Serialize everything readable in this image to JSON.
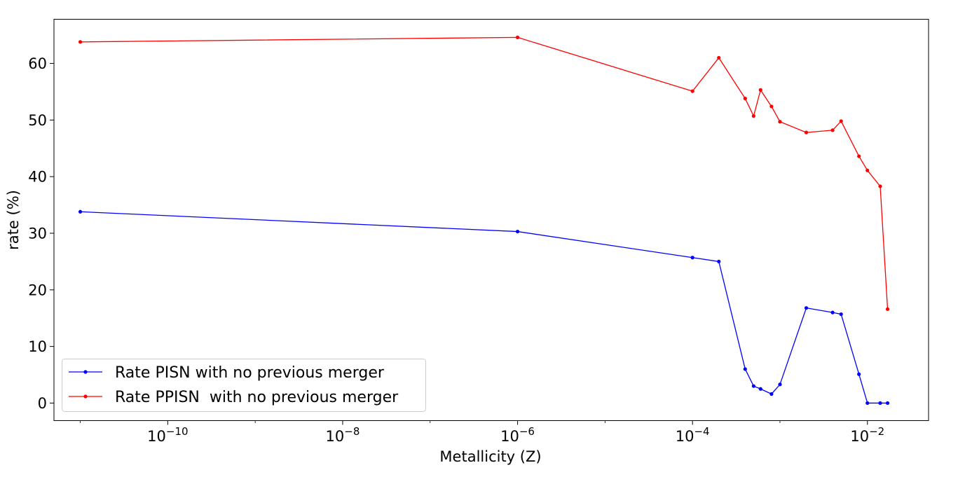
{
  "chart_data": {
    "type": "line",
    "title": "",
    "xlabel": "Metallicity (Z)",
    "ylabel": "rate (%)",
    "xscale": "log",
    "xlim": [
      5e-12,
      0.05
    ],
    "ylim": [
      -3.1,
      67.8
    ],
    "grid": false,
    "legend_position": "lower-left",
    "xticks": [
      {
        "value": 1e-10,
        "base": "10",
        "exp": "−10"
      },
      {
        "value": 1e-08,
        "base": "10",
        "exp": "−8"
      },
      {
        "value": 1e-06,
        "base": "10",
        "exp": "−6"
      },
      {
        "value": 0.0001,
        "base": "10",
        "exp": "−4"
      },
      {
        "value": 0.01,
        "base": "10",
        "exp": "−2"
      }
    ],
    "yticks": [
      0,
      10,
      20,
      30,
      40,
      50,
      60
    ],
    "series": [
      {
        "name": "Rate PISN with no previous merger",
        "color": "#0000ff",
        "marker": "dot",
        "points": [
          [
            1e-11,
            33.8
          ],
          [
            1e-06,
            30.3
          ],
          [
            0.0001,
            25.7
          ],
          [
            0.0002,
            25.0
          ],
          [
            0.0004,
            6.0
          ],
          [
            0.0005,
            3.0
          ],
          [
            0.0006,
            2.5
          ],
          [
            0.0008,
            1.6
          ],
          [
            0.001,
            3.3
          ],
          [
            0.002,
            16.8
          ],
          [
            0.004,
            16.0
          ],
          [
            0.005,
            15.7
          ],
          [
            0.008,
            5.1
          ],
          [
            0.01,
            0.0
          ],
          [
            0.014,
            0.0
          ],
          [
            0.017,
            0.0
          ]
        ]
      },
      {
        "name": "Rate PPISN  with no previous merger",
        "color": "#ff0000",
        "marker": "dot",
        "points": [
          [
            1e-11,
            63.8
          ],
          [
            1e-06,
            64.6
          ],
          [
            0.0001,
            55.1
          ],
          [
            0.0002,
            61.0
          ],
          [
            0.0004,
            53.8
          ],
          [
            0.0005,
            50.7
          ],
          [
            0.0006,
            55.3
          ],
          [
            0.0008,
            52.4
          ],
          [
            0.001,
            49.7
          ],
          [
            0.002,
            47.8
          ],
          [
            0.004,
            48.2
          ],
          [
            0.005,
            49.8
          ],
          [
            0.008,
            43.6
          ],
          [
            0.01,
            41.1
          ],
          [
            0.014,
            38.3
          ],
          [
            0.017,
            16.6
          ]
        ]
      }
    ]
  }
}
